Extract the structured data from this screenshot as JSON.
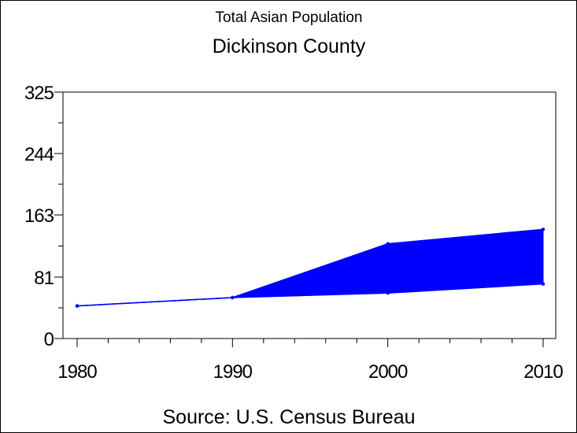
{
  "chart_data": {
    "type": "area",
    "title": "Dickinson County",
    "subtitle": "Total Asian Population",
    "source": "Source: U.S. Census Bureau",
    "x": [
      1980,
      1990,
      2000,
      2010
    ],
    "x_tick_labels": [
      "1980",
      "1990",
      "2000",
      "2010"
    ],
    "xlim": [
      1980,
      2010
    ],
    "ylim": [
      0,
      325
    ],
    "y_ticks": [
      0,
      81,
      163,
      244,
      325
    ],
    "y_tick_labels": [
      "0",
      "81",
      "163",
      "244",
      "325"
    ],
    "grid": false,
    "legend": "none",
    "series": [
      {
        "role": "lower",
        "values": [
          43,
          54,
          60,
          72
        ],
        "color": "#0000ff"
      },
      {
        "role": "upper",
        "values": [
          43,
          54,
          125,
          144
        ],
        "color": "#0000ff"
      }
    ]
  }
}
